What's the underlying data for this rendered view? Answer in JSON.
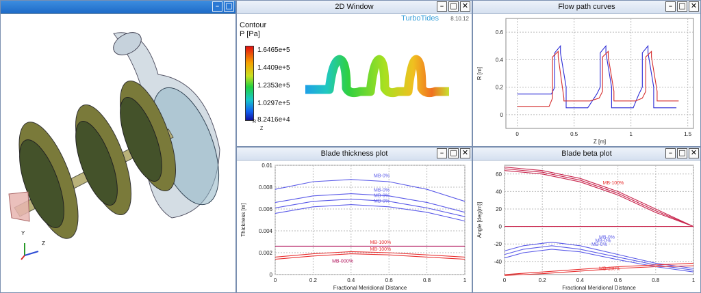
{
  "windows": {
    "view3d": {
      "title": ""
    },
    "win2d": {
      "title": "2D Window"
    },
    "flow": {
      "title": "Flow path curves"
    },
    "thickness": {
      "title": "Blade thickness plot"
    },
    "beta": {
      "title": "Blade beta plot"
    }
  },
  "window_buttons": {
    "minimize": "–",
    "maximize": "□",
    "close": "✕"
  },
  "win2d": {
    "brand": "TurboTides",
    "version": "8.10.12",
    "contour_label": "Contour",
    "variable_label": "P [Pa]",
    "colorbar_ticks": [
      "1.6465e+5",
      "1.4409e+5",
      "1.2353e+5",
      "1.0297e+5",
      "8.2416e+4"
    ],
    "axis_r": "R",
    "axis_z": "Z"
  },
  "view3d": {
    "axis_y": "Y",
    "axis_z": "Z"
  },
  "chart_data": [
    {
      "name": "Flow path curves",
      "type": "line",
      "xlabel": "Z [m]",
      "ylabel": "R [m]",
      "xlim": [
        -0.1,
        1.55
      ],
      "ylim": [
        -0.1,
        0.7
      ],
      "x_ticks": [
        "0",
        "0.5",
        "1",
        "1.5"
      ],
      "y_ticks": [
        "0",
        "0.2",
        "0.4",
        "0.6"
      ],
      "grid": true,
      "series": [
        {
          "color": "#2b2bd6",
          "x": [
            0,
            0.3,
            0.33,
            0.33,
            0.38,
            0.38,
            0.43,
            0.43,
            0.62,
            0.7,
            0.73,
            0.73,
            0.78,
            0.78,
            0.83,
            0.83,
            1.02,
            1.07,
            1.1,
            1.1,
            1.15,
            1.15,
            1.2,
            1.2,
            1.4
          ],
          "y": [
            0.15,
            0.15,
            0.2,
            0.45,
            0.5,
            0.45,
            0.2,
            0.05,
            0.05,
            0.15,
            0.2,
            0.45,
            0.5,
            0.45,
            0.2,
            0.05,
            0.05,
            0.15,
            0.2,
            0.45,
            0.5,
            0.45,
            0.2,
            0.05,
            0.05
          ]
        },
        {
          "color": "#d42a2a",
          "x": [
            0,
            0.28,
            0.31,
            0.31,
            0.36,
            0.36,
            0.41,
            0.41,
            0.64,
            0.72,
            0.75,
            0.75,
            0.8,
            0.8,
            0.85,
            0.85,
            1.04,
            1.1,
            1.13,
            1.13,
            1.18,
            1.18,
            1.23,
            1.23,
            1.42
          ],
          "y": [
            0.06,
            0.06,
            0.12,
            0.42,
            0.46,
            0.42,
            0.12,
            0.1,
            0.1,
            0.12,
            0.17,
            0.42,
            0.46,
            0.42,
            0.17,
            0.1,
            0.1,
            0.12,
            0.17,
            0.42,
            0.46,
            0.42,
            0.17,
            0.1,
            0.1
          ]
        }
      ]
    },
    {
      "name": "Blade thickness plot",
      "type": "line",
      "xlabel": "Fractional Meridional Distance",
      "ylabel": "Thickness [m]",
      "xlim": [
        0,
        1
      ],
      "ylim": [
        0,
        0.01
      ],
      "x_ticks": [
        "0",
        "0.2",
        "0.4",
        "0.6",
        "0.8",
        "1"
      ],
      "y_ticks": [
        "0",
        "0.002",
        "0.004",
        "0.006",
        "0.008",
        "0.01"
      ],
      "grid": true,
      "annotations": [
        "MB-0%",
        "MB-0%",
        "MB-0%",
        "MB-0%",
        "MB-100%",
        "MB-100%",
        "MB-000%"
      ],
      "series": [
        {
          "color": "#5a5ae8",
          "x": [
            0,
            0.2,
            0.4,
            0.6,
            0.8,
            1
          ],
          "y": [
            0.0078,
            0.0085,
            0.0087,
            0.0085,
            0.0078,
            0.0067
          ]
        },
        {
          "color": "#5a5ae8",
          "x": [
            0,
            0.2,
            0.4,
            0.6,
            0.8,
            1
          ],
          "y": [
            0.0066,
            0.0072,
            0.0074,
            0.0072,
            0.0066,
            0.0057
          ]
        },
        {
          "color": "#5a5ae8",
          "x": [
            0,
            0.2,
            0.4,
            0.6,
            0.8,
            1
          ],
          "y": [
            0.0061,
            0.0067,
            0.0069,
            0.0067,
            0.0061,
            0.0053
          ]
        },
        {
          "color": "#5a5ae8",
          "x": [
            0,
            0.2,
            0.4,
            0.6,
            0.8,
            1
          ],
          "y": [
            0.0056,
            0.0062,
            0.0064,
            0.0062,
            0.0057,
            0.0049
          ]
        },
        {
          "color": "#b0125a",
          "x": [
            0,
            1
          ],
          "y": [
            0.0026,
            0.0026
          ]
        },
        {
          "color": "#e83030",
          "x": [
            0,
            0.2,
            0.4,
            0.6,
            0.8,
            1
          ],
          "y": [
            0.0016,
            0.0019,
            0.0021,
            0.002,
            0.0018,
            0.0016
          ]
        },
        {
          "color": "#e83030",
          "x": [
            0,
            0.2,
            0.4,
            0.6,
            0.8,
            1
          ],
          "y": [
            0.0014,
            0.0017,
            0.0019,
            0.0018,
            0.0016,
            0.0014
          ]
        }
      ]
    },
    {
      "name": "Blade beta plot",
      "type": "line",
      "xlabel": "Fractional Meridional Distance",
      "ylabel": "Angle [deg(m)]",
      "xlim": [
        0,
        1
      ],
      "ylim": [
        -55,
        70
      ],
      "x_ticks": [
        "0",
        "0.2",
        "0.4",
        "0.6",
        "0.8",
        "1"
      ],
      "y_ticks": [
        "-40",
        "-20",
        "0",
        "20",
        "40",
        "60"
      ],
      "grid": true,
      "annotations": [
        "MB-0%",
        "MB-0%",
        "MB-0%",
        "MB-100%",
        "MB-100%"
      ],
      "series": [
        {
          "color": "#c8244c",
          "x": [
            0,
            0.2,
            0.4,
            0.6,
            0.8,
            1
          ],
          "y": [
            68,
            64,
            55,
            40,
            20,
            0
          ]
        },
        {
          "color": "#c8244c",
          "x": [
            0,
            0.2,
            0.4,
            0.6,
            0.8,
            1
          ],
          "y": [
            66,
            62,
            53,
            38,
            18,
            0
          ]
        },
        {
          "color": "#c8244c",
          "x": [
            0,
            0.2,
            0.4,
            0.6,
            0.8,
            1
          ],
          "y": [
            64,
            60,
            51,
            36,
            16,
            0
          ]
        },
        {
          "color": "#c8244c",
          "x": [
            0,
            1
          ],
          "y": [
            0,
            0
          ]
        },
        {
          "color": "#5a5ae8",
          "x": [
            0,
            0.1,
            0.25,
            0.4,
            0.6,
            0.8,
            1
          ],
          "y": [
            -28,
            -22,
            -18,
            -22,
            -32,
            -42,
            -48
          ]
        },
        {
          "color": "#5a5ae8",
          "x": [
            0,
            0.1,
            0.25,
            0.4,
            0.6,
            0.8,
            1
          ],
          "y": [
            -32,
            -26,
            -22,
            -26,
            -35,
            -44,
            -50
          ]
        },
        {
          "color": "#5a5ae8",
          "x": [
            0,
            0.1,
            0.25,
            0.4,
            0.6,
            0.8,
            1
          ],
          "y": [
            -36,
            -30,
            -26,
            -29,
            -38,
            -46,
            -52
          ]
        },
        {
          "color": "#e83030",
          "x": [
            0,
            0.2,
            0.4,
            0.6,
            0.8,
            1
          ],
          "y": [
            -55,
            -52,
            -49,
            -46,
            -44,
            -42
          ]
        },
        {
          "color": "#e83030",
          "x": [
            0,
            0.2,
            0.4,
            0.6,
            0.8,
            1
          ],
          "y": [
            -56,
            -54,
            -51,
            -48,
            -46,
            -45
          ]
        }
      ]
    }
  ]
}
